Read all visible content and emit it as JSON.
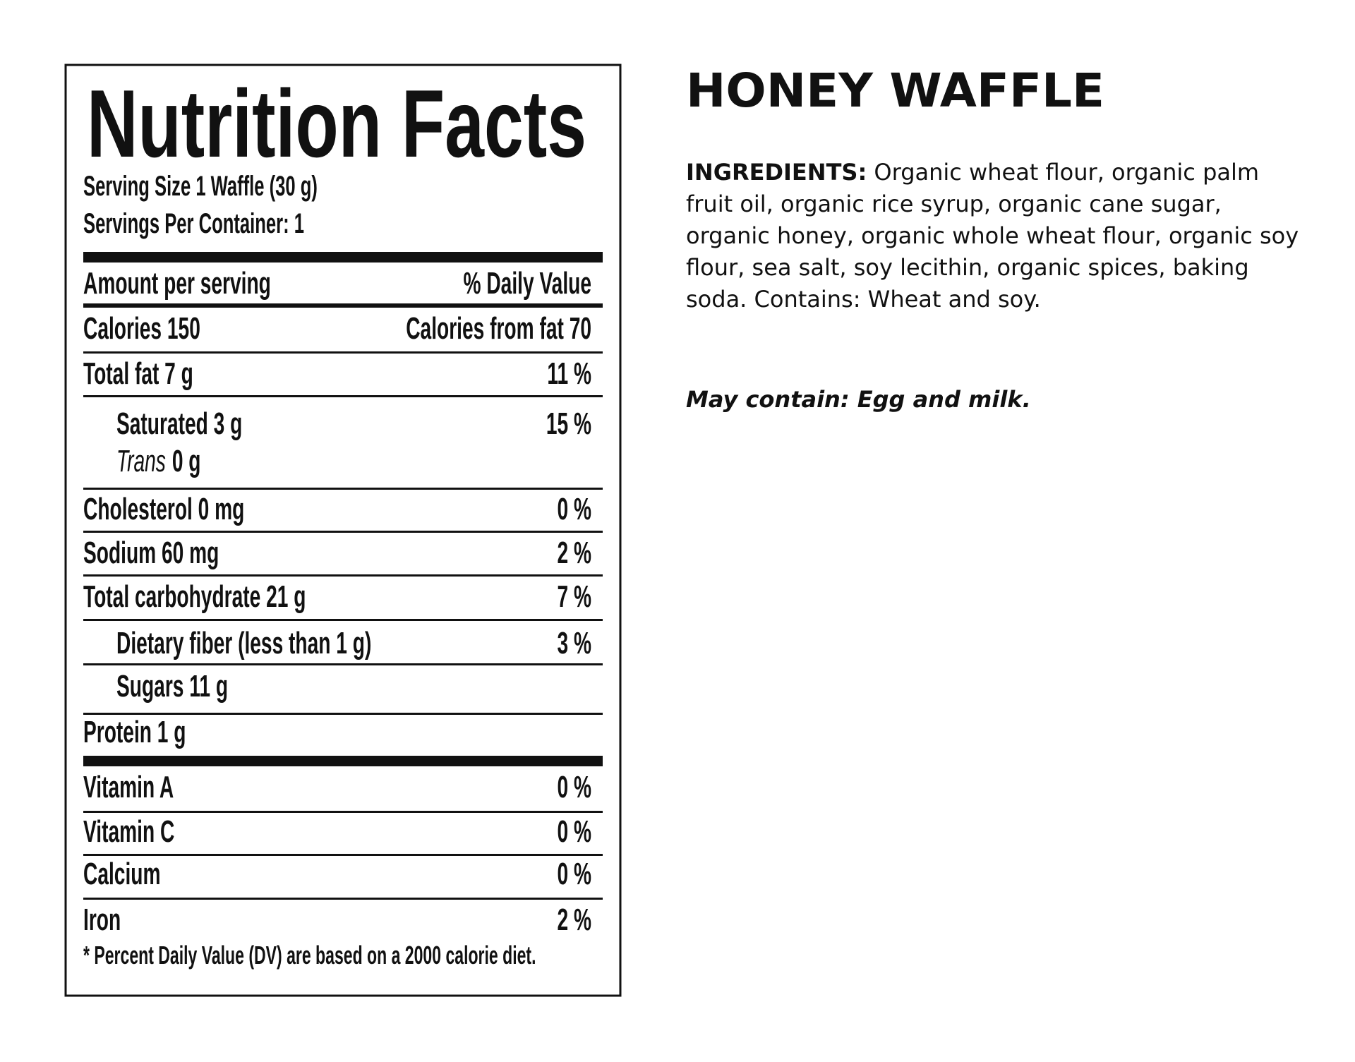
{
  "label": {
    "title": "Nutrition Facts",
    "serving_size": "Serving Size 1 Waffle (30 g)",
    "servings_per_container": "Servings Per Container: 1",
    "header": {
      "amount": "Amount per serving",
      "dv": "% Daily Value"
    },
    "calories": {
      "label": "Calories 150",
      "from_fat": "Calories from fat  70"
    },
    "rows": [
      {
        "label": "Total fat 7 g",
        "dv": "11 %",
        "sub": [
          {
            "label": "Saturated  3 g",
            "dv": "15 %"
          },
          {
            "italic": "Trans",
            "label": "0 g"
          }
        ]
      },
      {
        "label": "Cholesterol 0 mg",
        "dv": "0 %"
      },
      {
        "label": "Sodium 60 mg",
        "dv": "2 %"
      },
      {
        "label": "Total carbohydrate 21 g",
        "dv": "7 %",
        "sub": [
          {
            "label": "Dietary fiber (less than 1 g)",
            "dv": "3 %"
          },
          {
            "label": "Sugars 11 g"
          }
        ]
      },
      {
        "label": "Protein 1 g"
      }
    ],
    "vitamins": [
      {
        "label": "Vitamin A",
        "dv": "0 %"
      },
      {
        "label": "Vitamin C",
        "dv": "0 %"
      },
      {
        "label": "Calcium",
        "dv": "0 %"
      },
      {
        "label": "Iron",
        "dv": "2 %"
      }
    ],
    "footnote": "* Percent Daily Value (DV) are based on a 2000 calorie diet."
  },
  "product": {
    "name": "HONEY WAFFLE",
    "ingredients_heading": "INGREDIENTS:",
    "ingredients": "Organic wheat flour, organic palm fruit oil, organic rice syrup, organic cane sugar, organic honey, organic whole wheat flour, organic soy flour, sea salt, soy lecithin, organic spices, baking soda. Contains: Wheat and soy.",
    "may_contain": "May contain: Egg and milk."
  }
}
